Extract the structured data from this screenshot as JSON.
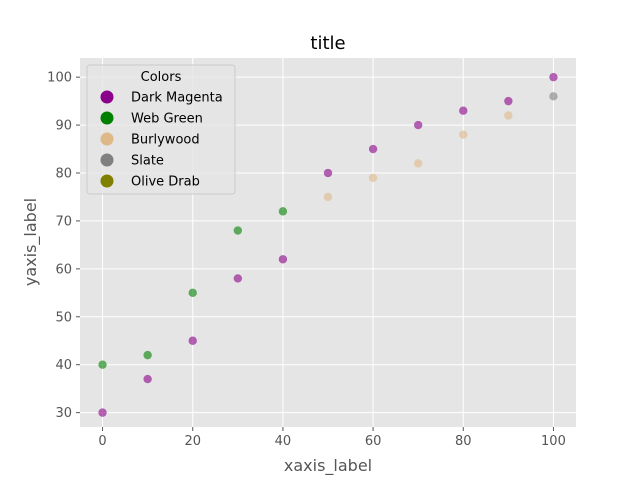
{
  "chart_data": {
    "type": "scatter",
    "title": "title",
    "xlabel": "xaxis_label",
    "ylabel": "yaxis_label",
    "xlim": [
      -5,
      105
    ],
    "ylim": [
      27,
      104
    ],
    "xticks": [
      0,
      20,
      40,
      60,
      80,
      100
    ],
    "yticks": [
      30,
      40,
      50,
      60,
      70,
      80,
      90,
      100
    ],
    "grid": true,
    "background_color": "#e5e5e5",
    "legend": {
      "title": "Colors",
      "placement": "upper-left",
      "entries": [
        {
          "label": "Dark Magenta",
          "color": "#8b008b"
        },
        {
          "label": "Web Green",
          "color": "#008000"
        },
        {
          "label": "Burlywood",
          "color": "#deb887"
        },
        {
          "label": "Slate",
          "color": "#808080"
        },
        {
          "label": "Olive Drab",
          "color": "#808000"
        }
      ]
    },
    "series": [
      {
        "name": "Dark Magenta",
        "color": "#8b008b",
        "points": [
          [
            0,
            30
          ],
          [
            10,
            37
          ],
          [
            20,
            45
          ],
          [
            30,
            58
          ],
          [
            40,
            62
          ],
          [
            50,
            80
          ],
          [
            60,
            85
          ],
          [
            70,
            90
          ],
          [
            80,
            93
          ],
          [
            90,
            95
          ],
          [
            100,
            100
          ]
        ]
      },
      {
        "name": "Web Green",
        "color": "#008000",
        "points": [
          [
            0,
            40
          ],
          [
            10,
            42
          ],
          [
            20,
            55
          ],
          [
            30,
            68
          ],
          [
            40,
            72
          ]
        ]
      },
      {
        "name": "Burlywood",
        "color": "#deb887",
        "points": [
          [
            50,
            75
          ],
          [
            60,
            79
          ],
          [
            70,
            82
          ],
          [
            80,
            88
          ],
          [
            90,
            92
          ]
        ]
      },
      {
        "name": "Slate",
        "color": "#808080",
        "points": [
          [
            100,
            96
          ]
        ]
      }
    ]
  }
}
